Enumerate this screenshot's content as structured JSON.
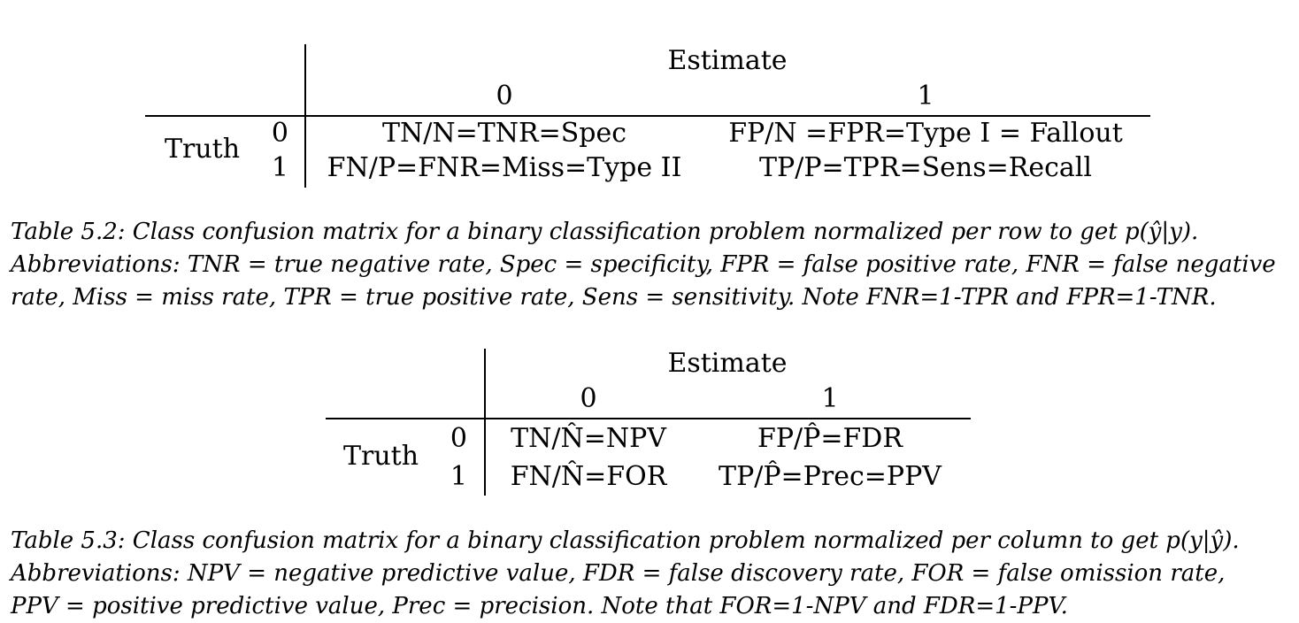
{
  "table_1": {
    "header": "Estimate",
    "col_labels": [
      "0",
      "1"
    ],
    "row_group_label": "Truth",
    "row_labels": [
      "0",
      "1"
    ],
    "cells": [
      [
        "TN/N=TNR=Spec",
        "FP/N =FPR=Type I = Fallout"
      ],
      [
        "FN/P=FNR=Miss=Type II",
        "TP/P=TPR=Sens=Recall"
      ]
    ],
    "caption_lines": [
      "Table 5.2: Class confusion matrix for a binary classification problem normalized per row to get p(ŷ|y).",
      "Abbreviations: TNR = true negative rate, Spec = specificity, FPR = false positive rate, FNR = false negative",
      "rate, Miss = miss rate, TPR = true positive rate, Sens = sensitivity. Note FNR=1-TPR and FPR=1-TNR."
    ]
  },
  "table_2": {
    "header": "Estimate",
    "col_labels": [
      "0",
      "1"
    ],
    "row_group_label": "Truth",
    "row_labels": [
      "0",
      "1"
    ],
    "cells": [
      [
        "TN/N̂=NPV",
        "FP/P̂=FDR"
      ],
      [
        "FN/N̂=FOR",
        "TP/P̂=Prec=PPV"
      ]
    ],
    "caption_lines": [
      "Table 5.3: Class confusion matrix for a binary classification problem normalized per column to get p(y|ŷ).",
      "Abbreviations: NPV = negative predictive value, FDR = false discovery rate, FOR = false omission rate,",
      "PPV = positive predictive value, Prec = precision. Note that FOR=1-NPV and FDR=1-PPV."
    ]
  }
}
